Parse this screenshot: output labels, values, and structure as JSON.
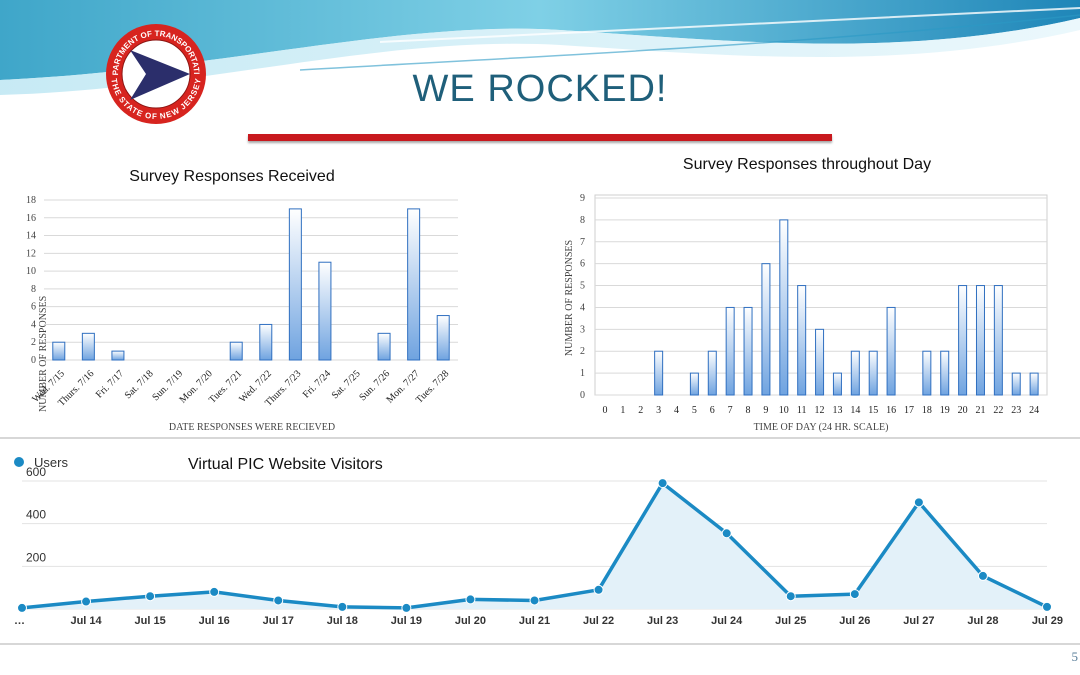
{
  "slide": {
    "title": "WE ROCKED!",
    "page_number": "5",
    "logo_text_top": "DEPARTMENT OF TRANSPORTATION",
    "logo_text_bottom": "THE STATE OF NEW JERSEY"
  },
  "colors": {
    "title": "#1f5f7a",
    "red_bar": "#c8191e",
    "bar_fill_top": "#ffffff",
    "bar_fill_bottom": "#6fa3e0",
    "bar_stroke": "#2f6fc0",
    "line": "#1b8ac4",
    "area": "#e3f1f9"
  },
  "chart_data": [
    {
      "type": "bar",
      "title": "Survey Responses Received",
      "xlabel": "DATE RESPONSES WERE RECIEVED",
      "ylabel": "NUMBER OF RESPONSES",
      "categories": [
        "Wed. 7/15",
        "Thurs. 7/16",
        "Fri. 7/17",
        "Sat. 7/18",
        "Sun. 7/19",
        "Mon. 7/20",
        "Tues. 7/21",
        "Wed. 7/22",
        "Thurs. 7/23",
        "Fri. 7/24",
        "Sat. 7/25",
        "Sun. 7/26",
        "Mon. 7/27",
        "Tues. 7/28"
      ],
      "values": [
        2,
        3,
        1,
        0,
        0,
        0,
        2,
        4,
        17,
        11,
        0,
        3,
        17,
        5
      ],
      "yticks": [
        "0",
        "2",
        "4",
        "6",
        "8",
        "10",
        "12",
        "14",
        "16",
        "18"
      ],
      "ylim": [
        0,
        18
      ],
      "grid": true
    },
    {
      "type": "bar",
      "title": "Survey Responses throughout Day",
      "xlabel": "TIME OF DAY (24 HR. SCALE)",
      "ylabel": "NUMBER OF RESPONSES",
      "categories": [
        "0",
        "1",
        "2",
        "3",
        "4",
        "5",
        "6",
        "7",
        "8",
        "9",
        "10",
        "11",
        "12",
        "13",
        "14",
        "15",
        "16",
        "17",
        "18",
        "19",
        "20",
        "21",
        "22",
        "23",
        "24"
      ],
      "values": [
        0,
        0,
        0,
        2,
        0,
        1,
        2,
        4,
        4,
        6,
        8,
        5,
        3,
        1,
        2,
        2,
        4,
        0,
        2,
        2,
        5,
        5,
        5,
        1,
        1
      ],
      "yticks": [
        "0",
        "1",
        "2",
        "3",
        "4",
        "5",
        "6",
        "7",
        "8",
        "9"
      ],
      "ylim": [
        0,
        9
      ],
      "grid": true
    },
    {
      "type": "area",
      "title": "Virtual PIC Website Visitors",
      "legend": "Users",
      "categories": [
        "…",
        "Jul 14",
        "Jul 15",
        "Jul 16",
        "Jul 17",
        "Jul 18",
        "Jul 19",
        "Jul 20",
        "Jul 21",
        "Jul 22",
        "Jul 23",
        "Jul 24",
        "Jul 25",
        "Jul 26",
        "Jul 27",
        "Jul 28",
        "Jul 29"
      ],
      "values": [
        5,
        35,
        60,
        80,
        40,
        10,
        5,
        45,
        40,
        90,
        590,
        355,
        60,
        70,
        500,
        155,
        10
      ],
      "yticks": [
        "200",
        "400",
        "600"
      ],
      "ylim": [
        0,
        600
      ],
      "grid": true
    }
  ]
}
